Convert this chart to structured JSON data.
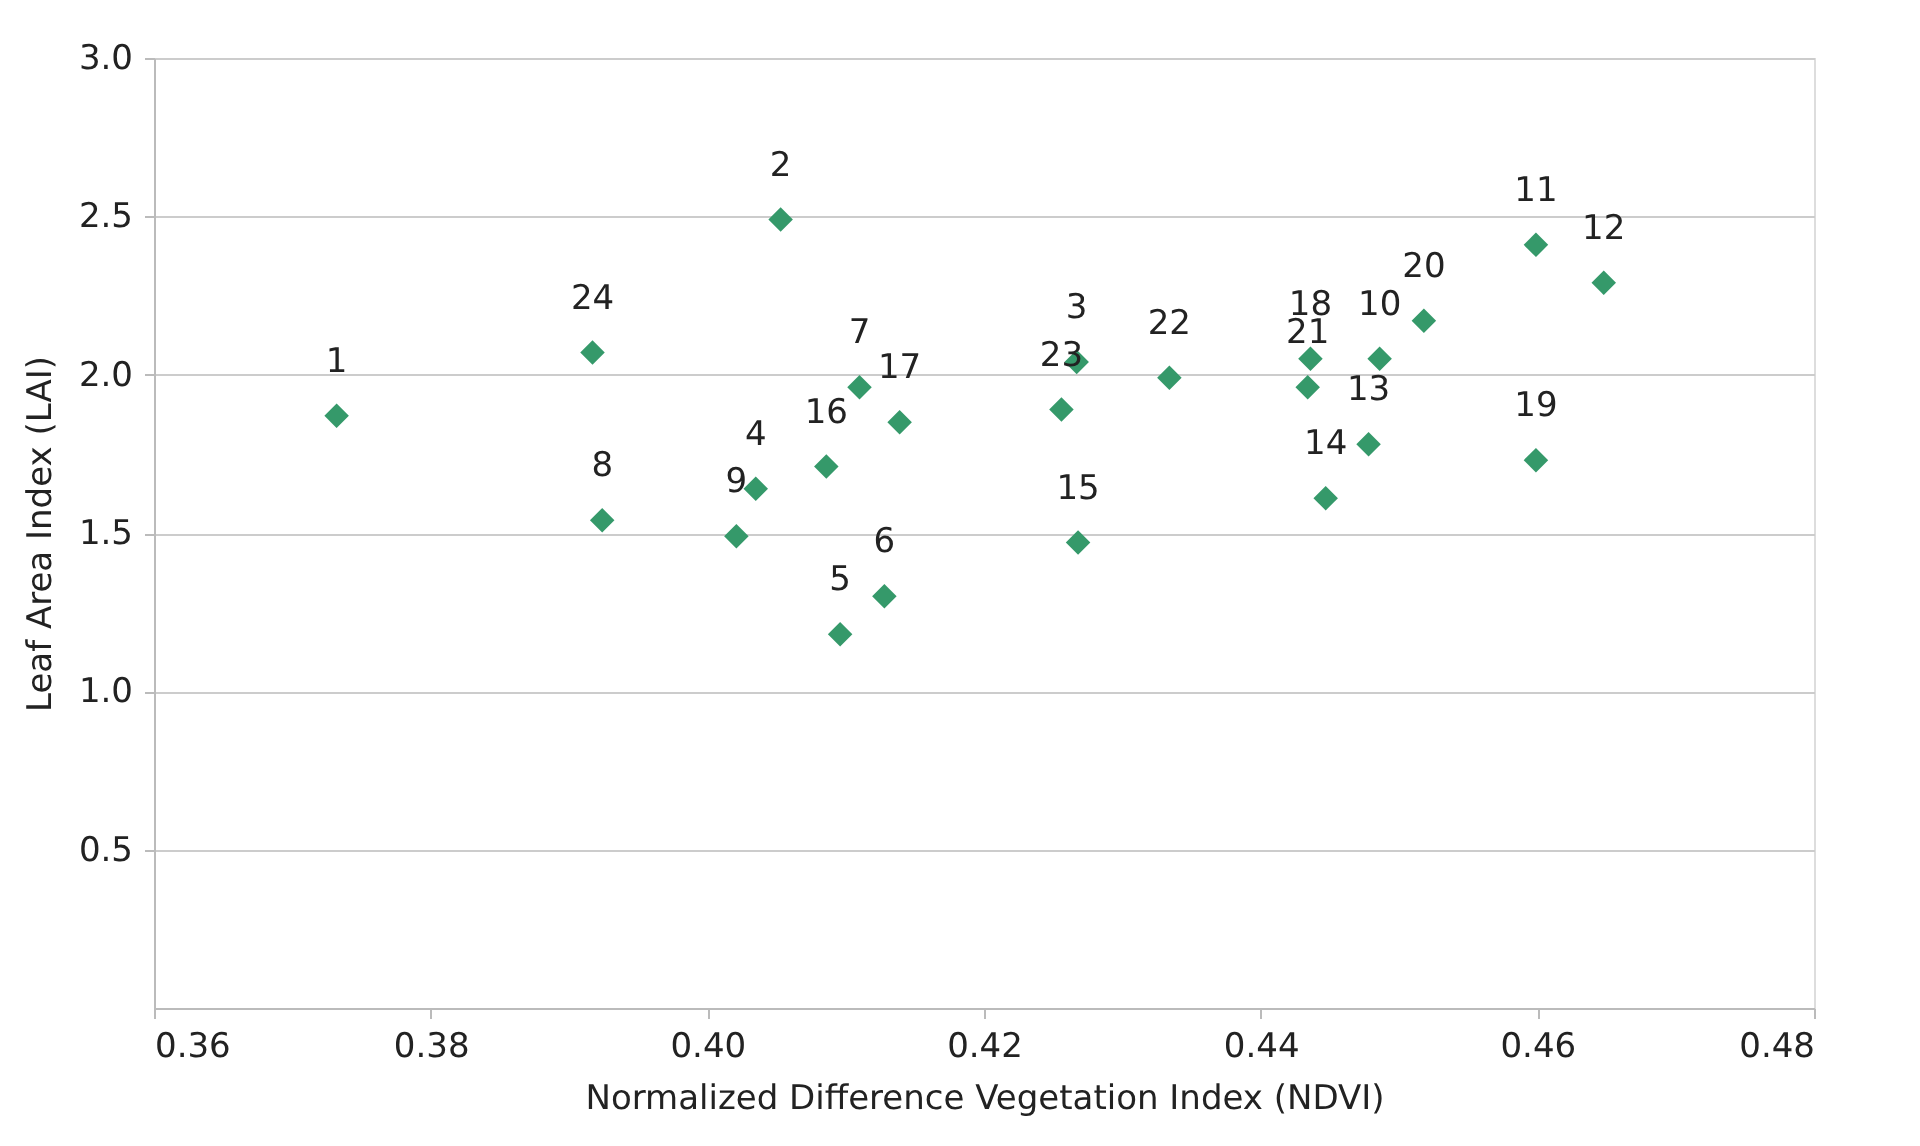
{
  "chart_data": {
    "type": "scatter",
    "xlabel": "Normalized Difference Vegetation Index (NDVI)",
    "ylabel": "Leaf Area Index (LAI)",
    "x": [
      0.3732,
      0.4053,
      0.4267,
      0.4035,
      0.4096,
      0.4128,
      0.411,
      0.3924,
      0.4021,
      0.4486,
      0.4599,
      0.4648,
      0.4478,
      0.4447,
      0.4268,
      0.4086,
      0.4139,
      0.4436,
      0.4599,
      0.4518,
      0.4434,
      0.4334,
      0.4256,
      0.3917
    ],
    "values": [
      1.87,
      2.49,
      2.04,
      1.64,
      1.18,
      1.3,
      1.96,
      1.54,
      1.49,
      2.05,
      2.41,
      2.29,
      1.78,
      1.61,
      1.47,
      1.71,
      1.85,
      2.05,
      1.73,
      2.17,
      1.96,
      1.99,
      1.89,
      2.07
    ],
    "annotations": [
      {
        "text": "1",
        "x": 0.3732,
        "y": 1.87
      },
      {
        "text": "2",
        "x": 0.4053,
        "y": 2.49
      },
      {
        "text": "3",
        "x": 0.4267,
        "y": 2.04
      },
      {
        "text": "4",
        "x": 0.4035,
        "y": 1.64
      },
      {
        "text": "5",
        "x": 0.4096,
        "y": 1.18
      },
      {
        "text": "6",
        "x": 0.4128,
        "y": 1.3
      },
      {
        "text": "7",
        "x": 0.411,
        "y": 1.96
      },
      {
        "text": "8",
        "x": 0.3924,
        "y": 1.54
      },
      {
        "text": "9",
        "x": 0.4021,
        "y": 1.49
      },
      {
        "text": "10",
        "x": 0.4486,
        "y": 2.05
      },
      {
        "text": "11",
        "x": 0.4599,
        "y": 2.41
      },
      {
        "text": "12",
        "x": 0.4648,
        "y": 2.29
      },
      {
        "text": "13",
        "x": 0.4478,
        "y": 1.78
      },
      {
        "text": "14",
        "x": 0.4447,
        "y": 1.61
      },
      {
        "text": "15",
        "x": 0.4268,
        "y": 1.47
      },
      {
        "text": "16",
        "x": 0.4086,
        "y": 1.71
      },
      {
        "text": "17",
        "x": 0.4139,
        "y": 1.85
      },
      {
        "text": "18",
        "x": 0.4436,
        "y": 2.05
      },
      {
        "text": "19",
        "x": 0.4599,
        "y": 1.73
      },
      {
        "text": "20",
        "x": 0.4518,
        "y": 2.17
      },
      {
        "text": "21",
        "x": 0.4434,
        "y": 1.96
      },
      {
        "text": "22",
        "x": 0.4334,
        "y": 1.99
      },
      {
        "text": "23",
        "x": 0.4256,
        "y": 1.89
      },
      {
        "text": "24",
        "x": 0.3917,
        "y": 2.07
      }
    ],
    "color": "#35996a",
    "marker": "diamond",
    "xlim": [
      0.36,
      0.48
    ],
    "xticks": [
      0.36,
      0.38,
      {
        "value": 0.4,
        "label": "0.40"
      },
      0.42,
      0.44,
      0.46,
      0.48
    ],
    "ylim": [
      0,
      3
    ],
    "yticks": [
      0.5,
      {
        "value": 1,
        "label": "1.0"
      },
      1.5,
      {
        "value": 2,
        "label": "2.0"
      },
      2.5,
      {
        "value": 3,
        "label": "3.0"
      }
    ],
    "grid": "y"
  }
}
